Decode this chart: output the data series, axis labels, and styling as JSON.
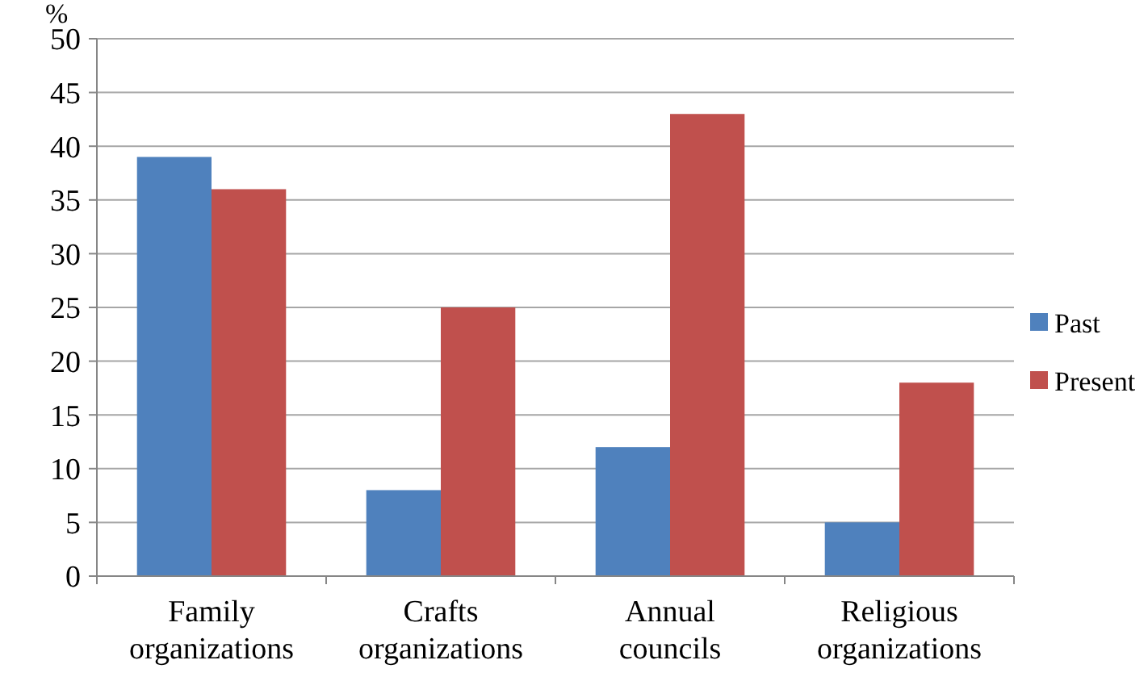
{
  "chart_data": {
    "type": "bar",
    "ylabel": "%",
    "categories": [
      "Family\norganizations",
      "Crafts\norganizations",
      "Annual\ncouncils",
      "Religious\norganizations"
    ],
    "series": [
      {
        "name": "Past",
        "color": "#4f81bd",
        "values": [
          39,
          8,
          12,
          5
        ]
      },
      {
        "name": "Present",
        "color": "#c0504d",
        "values": [
          36,
          25,
          43,
          18
        ]
      }
    ],
    "ylim": [
      0,
      50
    ],
    "yticks": [
      0,
      5,
      10,
      15,
      20,
      25,
      30,
      35,
      40,
      45,
      50
    ],
    "grid": "y",
    "legend": "right"
  }
}
